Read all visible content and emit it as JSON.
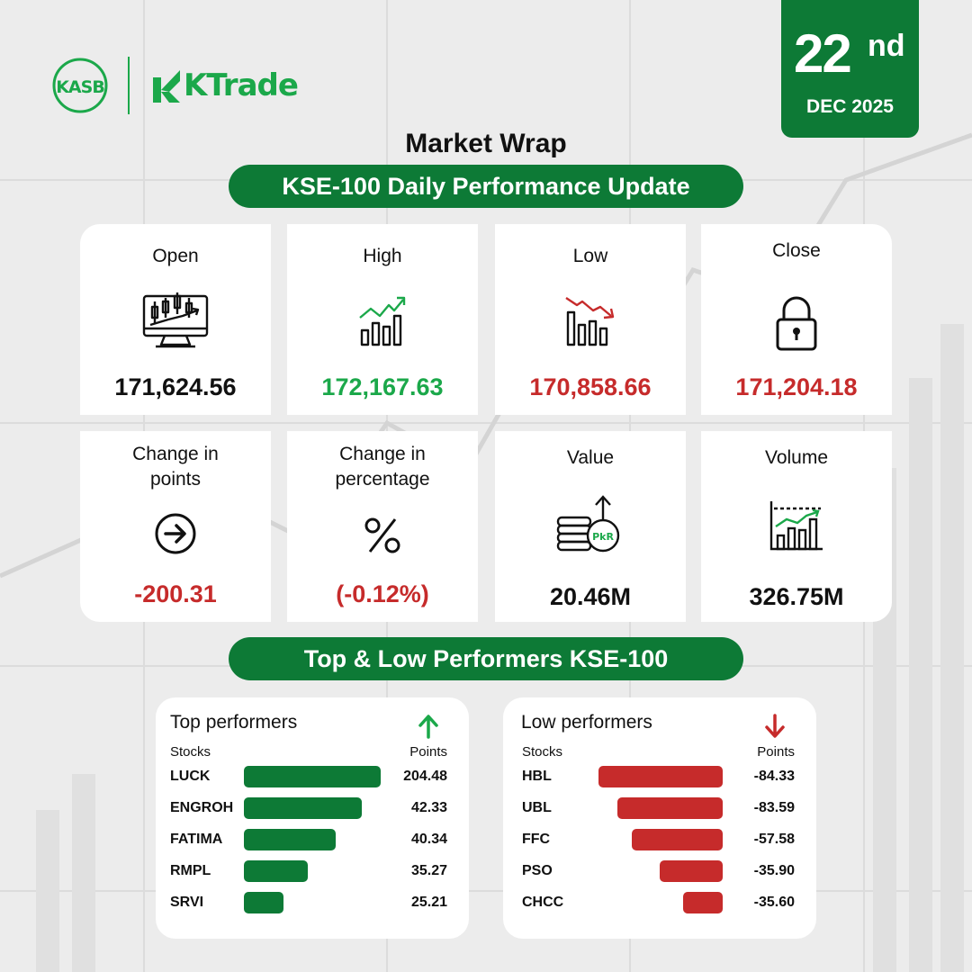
{
  "brand": {
    "kasb_logo_text": "KASB",
    "ktrade_logo_text": "KTrade",
    "green": "#0d7a36",
    "light_green": "#1ba84a",
    "red": "#c62b2b"
  },
  "date": {
    "day": "22",
    "suffix": "nd",
    "month_year": "DEC 2025"
  },
  "header": {
    "title": "Market Wrap",
    "subtitle": "KSE-100 Daily Performance Update"
  },
  "stats": [
    {
      "label": "Open",
      "value": "171,624.56",
      "icon": "candlestick-monitor-icon",
      "label_color": "black",
      "value_color": "black"
    },
    {
      "label": "High",
      "value": "172,167.63",
      "icon": "chart-up-icon",
      "label_color": "green",
      "value_color": "green"
    },
    {
      "label": "Low",
      "value": "170,858.66",
      "icon": "chart-down-icon",
      "label_color": "red",
      "value_color": "red"
    },
    {
      "label": "Close",
      "value": "171,204.18",
      "icon": "lock-icon",
      "label_color": "black",
      "value_color": "red"
    },
    {
      "label": "Change in points",
      "value": "-200.31",
      "icon": "arrow-circle-icon",
      "label_color": "black",
      "value_color": "red"
    },
    {
      "label": "Change in percentage",
      "value": "(-0.12%)",
      "icon": "percent-icon",
      "label_color": "black",
      "value_color": "red"
    },
    {
      "label": "Value",
      "value": "20.46M",
      "icon": "coins-pkr-icon",
      "label_color": "black",
      "value_color": "black"
    },
    {
      "label": "Volume",
      "value": "326.75M",
      "icon": "volume-chart-icon",
      "label_color": "black",
      "value_color": "black"
    }
  ],
  "performers_heading": "Top & Low Performers KSE-100",
  "chart_data": [
    {
      "type": "bar",
      "title": "Top performers",
      "category_header": "Stocks",
      "value_header": "Points",
      "categories": [
        "LUCK",
        "ENGROH",
        "FATIMA",
        "RMPL",
        "SRVI"
      ],
      "values": [
        204.48,
        42.33,
        40.34,
        35.27,
        25.21
      ],
      "value_labels": [
        "204.48",
        "42.33",
        "40.34",
        "35.27",
        "25.21"
      ],
      "bar_fill_fraction": [
        1.0,
        0.86,
        0.67,
        0.47,
        0.29
      ],
      "color": "#0d7a36",
      "orientation": "horizontal"
    },
    {
      "type": "bar",
      "title": "Low performers",
      "category_header": "Stocks",
      "value_header": "Points",
      "categories": [
        "HBL",
        "UBL",
        "FFC",
        "PSO",
        "CHCC"
      ],
      "values": [
        -84.33,
        -83.59,
        -57.58,
        -35.9,
        -35.6
      ],
      "value_labels": [
        "-84.33",
        "-83.59",
        "-57.58",
        "-35.90",
        "-35.60"
      ],
      "bar_fill_fraction": [
        1.0,
        0.85,
        0.73,
        0.51,
        0.32
      ],
      "color": "#c62b2b",
      "orientation": "horizontal"
    }
  ]
}
